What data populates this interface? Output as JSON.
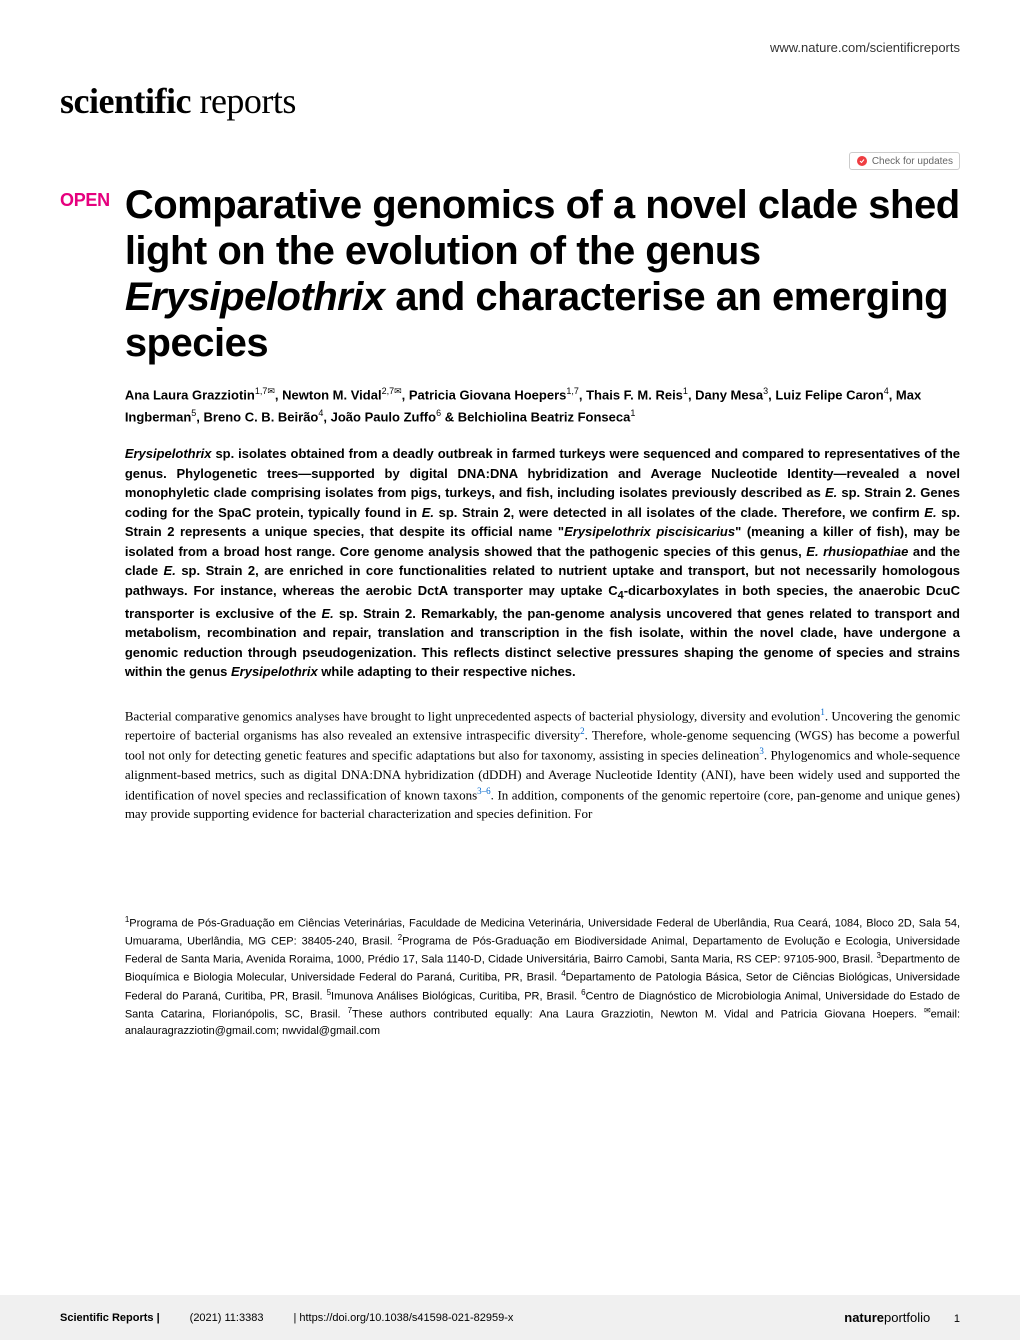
{
  "header": {
    "url": "www.nature.com/scientificreports"
  },
  "journal": {
    "name_bold": "scientific",
    "name_light": " reports"
  },
  "check_updates": {
    "label": "Check for updates"
  },
  "open_access": {
    "label": "OPEN"
  },
  "article": {
    "title_part1": "Comparative genomics of a novel clade shed light on the evolution of the genus ",
    "title_italic": "Erysipelothrix",
    "title_part2": " and characterise an emerging species",
    "authors_html": "Ana Laura Grazziotin<sup>1,7✉</sup>, Newton M. Vidal<sup>2,7✉</sup>, Patricia Giovana Hoepers<sup>1,7</sup>, Thais F. M. Reis<sup>1</sup>, Dany Mesa<sup>3</sup>, Luiz Felipe Caron<sup>4</sup>, Max Ingberman<sup>5</sup>, Breno C. B. Beirão<sup>4</sup>, João Paulo Zuffo<sup>6</sup> & Belchiolina Beatriz Fonseca<sup>1</sup>"
  },
  "abstract": {
    "text_html": "<span class=\"italic\">Erysipelothrix</span> sp. isolates obtained from a deadly outbreak in farmed turkeys were sequenced and compared to representatives of the genus. Phylogenetic trees—supported by digital DNA:DNA hybridization and Average Nucleotide Identity—revealed a novel monophyletic clade comprising isolates from pigs, turkeys, and fish, including isolates previously described as <span class=\"italic\">E.</span> sp. Strain 2. Genes coding for the SpaC protein, typically found in <span class=\"italic\">E.</span> sp. Strain 2, were detected in all isolates of the clade. Therefore, we confirm <span class=\"italic\">E.</span> sp. Strain 2 represents a unique species, that despite its official name \"<span class=\"italic\">Erysipelothrix piscisicarius</span>\" (meaning a killer of fish), may be isolated from a broad host range. Core genome analysis showed that the pathogenic species of this genus, <span class=\"italic\">E. rhusiopathiae</span> and the clade <span class=\"italic\">E.</span> sp. Strain 2, are enriched in core functionalities related to nutrient uptake and transport, but not necessarily homologous pathways. For instance, whereas the aerobic DctA transporter may uptake C<sub>4</sub>-dicarboxylates in both species, the anaerobic DcuC transporter is exclusive of the <span class=\"italic\">E.</span> sp. Strain 2. Remarkably, the pan-genome analysis uncovered that genes related to transport and metabolism, recombination and repair, translation and transcription in the fish isolate, within the novel clade, have undergone a genomic reduction through pseudogenization. This reflects distinct selective pressures shaping the genome of species and strains within the genus <span class=\"italic\">Erysipelothrix</span> while adapting to their respective niches."
  },
  "body": {
    "para1_html": "Bacterial comparative genomics analyses have brought to light unprecedented aspects of bacterial physiology, diversity and evolution<sup>1</sup>. Uncovering the genomic repertoire of bacterial organisms has also revealed an extensive intraspecific diversity<sup>2</sup>. Therefore, whole-genome sequencing (WGS) has become a powerful tool not only for detecting genetic features and specific adaptations but also for taxonomy, assisting in species delineation<sup>3</sup>. Phylogenomics and whole-sequence alignment-based metrics, such as digital DNA:DNA hybridization (dDDH) and Average Nucleotide Identity (ANI), have been widely used and supported the identification of novel species and reclassification of known taxons<sup>3–6</sup>. In addition, components of the genomic repertoire (core, pan-genome and unique genes) may provide supporting evidence for bacterial characterization and species definition. For"
  },
  "affiliations": {
    "text_html": "<sup>1</sup>Programa de Pós-Graduação em Ciências Veterinárias, Faculdade de Medicina Veterinária, Universidade Federal de Uberlândia, Rua Ceará, 1084, Bloco 2D, Sala 54, Umuarama, Uberlândia, MG CEP: 38405-240, Brasil. <sup>2</sup>Programa de Pós-Graduação em Biodiversidade Animal, Departamento de Evolução e Ecologia, Universidade Federal de Santa Maria, Avenida Roraima, 1000, Prédio 17, Sala 1140-D, Cidade Universitária, Bairro Camobi, Santa Maria, RS CEP: 97105-900, Brasil. <sup>3</sup>Departmento de Bioquímica e Biologia Molecular, Universidade Federal do Paraná, Curitiba, PR, Brasil. <sup>4</sup>Departamento de Patologia Básica, Setor de Ciências Biológicas, Universidade Federal do Paraná, Curitiba, PR, Brasil. <sup>5</sup>Imunova Análises Biológicas, Curitiba, PR, Brasil. <sup>6</sup>Centro de Diagnóstico de Microbiologia Animal, Universidade do Estado de Santa Catarina, Florianópolis, SC, Brasil. <sup>7</sup>These authors contributed equally: Ana Laura Grazziotin, Newton M. Vidal and Patricia Giovana Hoepers. <sup>✉</sup>email: analauragrazziotin@gmail.com; nwvidal@gmail.com"
  },
  "footer": {
    "journal_label": "Scientific Reports |",
    "citation": "(2021) 11:3383",
    "doi": "| https://doi.org/10.1038/s41598-021-82959-x",
    "portfolio_bold": "nature",
    "portfolio_light": "portfolio",
    "page": "1"
  },
  "colors": {
    "open_pink": "#e6007e",
    "link_blue": "#0066cc",
    "footer_bg": "#f0f0f0",
    "text": "#000000",
    "header_text": "#333333"
  },
  "typography": {
    "title_fontsize": 40,
    "authors_fontsize": 13,
    "abstract_fontsize": 13,
    "body_fontsize": 13,
    "affiliations_fontsize": 11,
    "footer_fontsize": 11
  }
}
